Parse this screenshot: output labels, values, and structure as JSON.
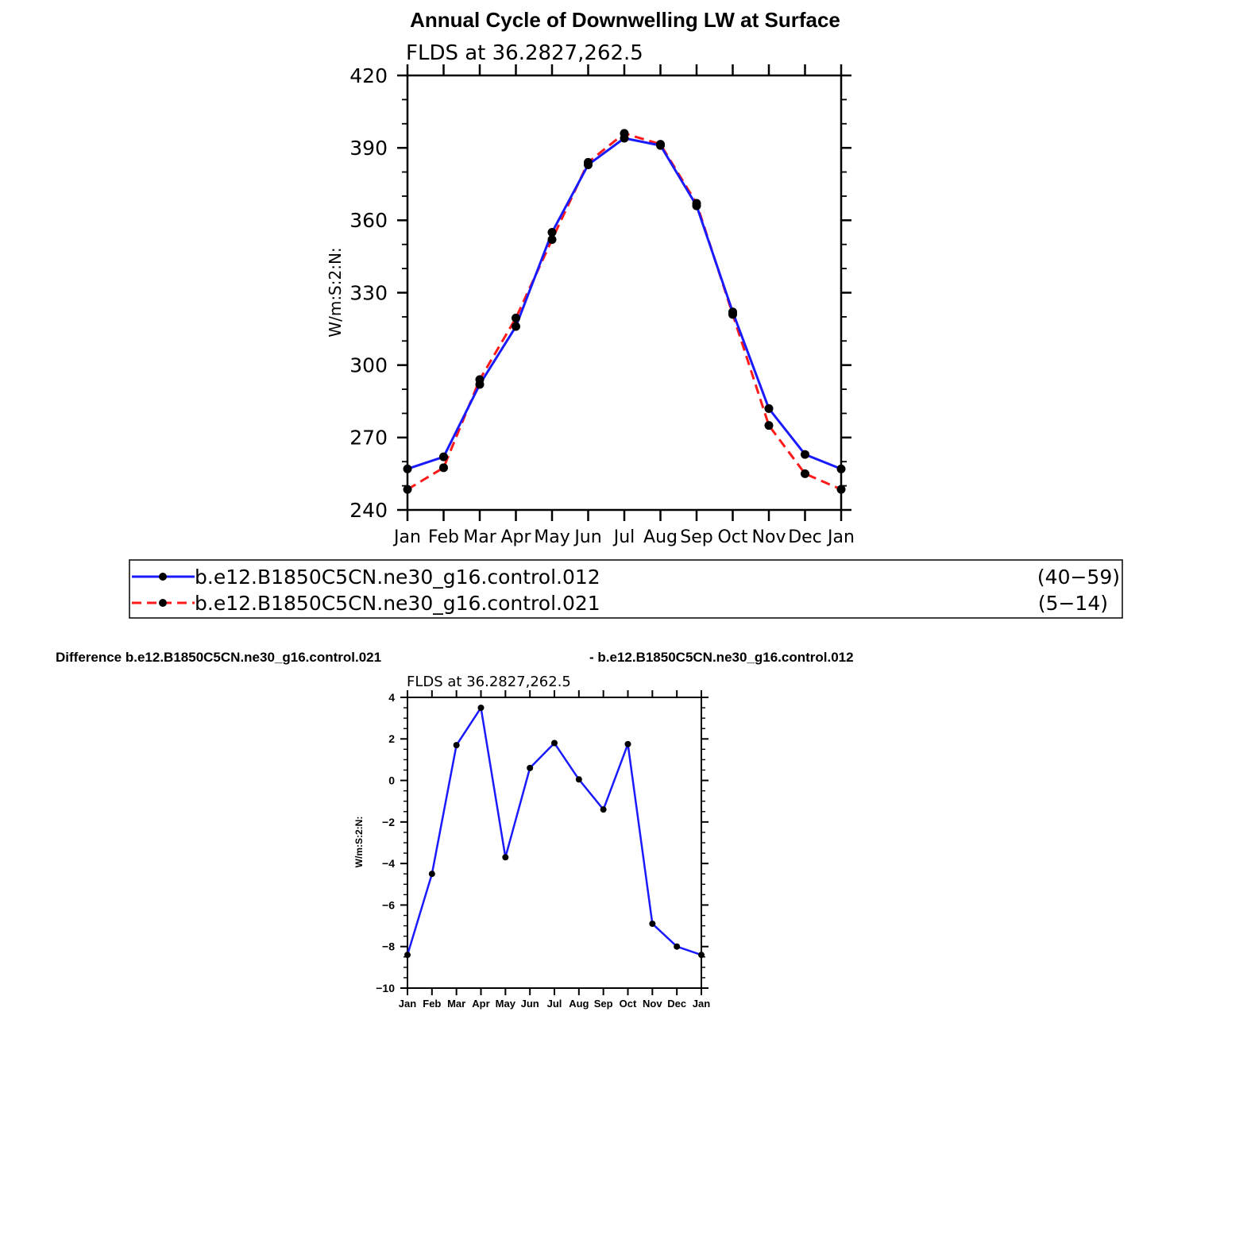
{
  "page_title": "Annual Cycle of Downwelling LW at Surface",
  "top_chart": {
    "subtitle": "FLDS at 36.2827,262.5",
    "ylabel": "W/m:S:2:N:",
    "ylim": [
      240,
      420
    ],
    "yticks": [
      "240",
      "270",
      "300",
      "330",
      "360",
      "390",
      "420"
    ],
    "months": [
      "Jan",
      "Feb",
      "Mar",
      "Apr",
      "May",
      "Jun",
      "Jul",
      "Aug",
      "Sep",
      "Oct",
      "Nov",
      "Dec",
      "Jan"
    ]
  },
  "legend": {
    "entries": [
      {
        "name": "b.e12.B1850C5CN.ne30_g16.control.012",
        "years": "(40−59)",
        "color": "#1a1aff",
        "dash": "solid"
      },
      {
        "name": "b.e12.B1850C5CN.ne30_g16.control.021",
        "years": "(5−14)",
        "color": "#ff1a1a",
        "dash": "dashed"
      }
    ]
  },
  "diff_title": {
    "left": "Difference b.e12.B1850C5CN.ne30_g16.control.021",
    "right": "- b.e12.B1850C5CN.ne30_g16.control.012"
  },
  "bottom_chart": {
    "subtitle": "FLDS at 36.2827,262.5",
    "ylabel": "W/m:S:2:N:",
    "ylim": [
      -10,
      4
    ],
    "yticks": [
      "−10",
      "−8",
      "−6",
      "−4",
      "−2",
      "0",
      "2",
      "4"
    ],
    "months": [
      "Jan",
      "Feb",
      "Mar",
      "Apr",
      "May",
      "Jun",
      "Jul",
      "Aug",
      "Sep",
      "Oct",
      "Nov",
      "Dec",
      "Jan"
    ]
  },
  "chart_data": [
    {
      "type": "line",
      "title": "Annual Cycle of Downwelling LW at Surface",
      "subtitle": "FLDS at 36.2827,262.5",
      "xlabel": "",
      "ylabel": "W/m:S:2:N:",
      "categories": [
        "Jan",
        "Feb",
        "Mar",
        "Apr",
        "May",
        "Jun",
        "Jul",
        "Aug",
        "Sep",
        "Oct",
        "Nov",
        "Dec",
        "Jan"
      ],
      "ylim": [
        240,
        420
      ],
      "series": [
        {
          "name": "b.e12.B1850C5CN.ne30_g16.control.012",
          "color": "#1a1aff",
          "values": [
            257,
            262,
            292,
            316,
            355,
            383,
            394,
            391,
            366,
            322,
            282,
            263,
            257
          ]
        },
        {
          "name": "b.e12.B1850C5CN.ne30_g16.control.021",
          "color": "#ff1a1a",
          "values": [
            248.5,
            257.5,
            294,
            319.5,
            352,
            384,
            396,
            391.5,
            367,
            321,
            275,
            255,
            248.5
          ]
        }
      ],
      "legend": "below"
    },
    {
      "type": "line",
      "title": "Difference b.e12.B1850C5CN.ne30_g16.control.021 - b.e12.B1850C5CN.ne30_g16.control.012",
      "subtitle": "FLDS at 36.2827,262.5",
      "xlabel": "",
      "ylabel": "W/m:S:2:N:",
      "categories": [
        "Jan",
        "Feb",
        "Mar",
        "Apr",
        "May",
        "Jun",
        "Jul",
        "Aug",
        "Sep",
        "Oct",
        "Nov",
        "Dec",
        "Jan"
      ],
      "ylim": [
        -10,
        4
      ],
      "series": [
        {
          "color": "#1a1aff",
          "values": [
            -8.4,
            -4.5,
            1.7,
            3.5,
            -3.7,
            0.6,
            1.8,
            0.05,
            -1.4,
            1.75,
            -6.9,
            -8.0,
            -8.4
          ]
        }
      ]
    }
  ]
}
